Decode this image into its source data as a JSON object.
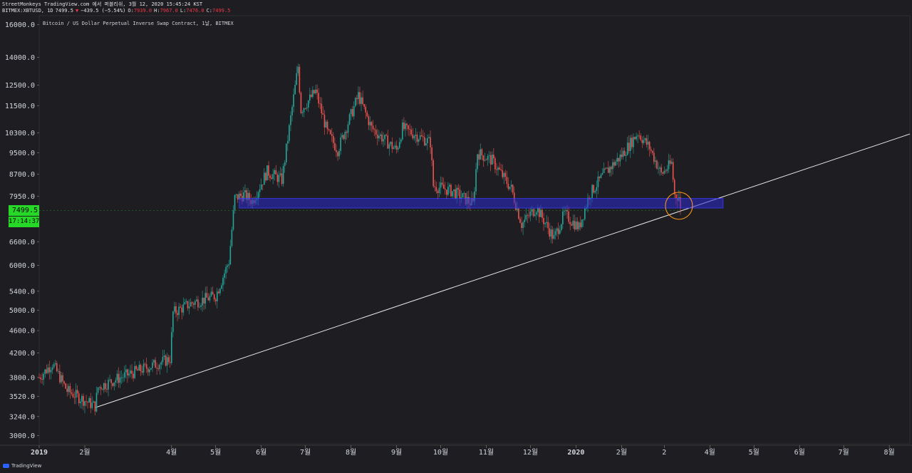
{
  "header": {
    "line1": "StreetMonkeys TradingView.com 에서 퍼블리쉬, 3월 12, 2020 15:45:24 KST",
    "symbol": "BITMEX:XBTUSD, 1D",
    "last": "7499.5",
    "arrow": "▼",
    "change": "−439.5 (−5.54%)",
    "o_label": "O:",
    "o_val": "7939.0",
    "h_label": "H:",
    "h_val": "7967.0",
    "l_label": "L:",
    "l_val": "7476.0",
    "c_label": "C:",
    "c_val": "7499.5"
  },
  "chart_title": "Bitcoin / US Dollar Perpetual Inverse Swap Contract, 1날, BITMEX",
  "price_tag": "7499.5",
  "timer_tag": "17:14:37",
  "footer_brand": "TradingView",
  "colors": {
    "up": "#26a69a",
    "down": "#ef5350",
    "support_zone": "#2b2bd0",
    "trendline": "#e6e6e6",
    "circle": "#f7931a",
    "last_price": "#26d926"
  },
  "chart_data": {
    "type": "candlestick",
    "scale": "log",
    "ylim": [
      2900,
      16600
    ],
    "y_ticks": [
      16000,
      14000,
      12500,
      11500,
      10300,
      9500,
      8700,
      7950,
      6600,
      6000,
      5400,
      5000,
      4600,
      4200,
      3800,
      3520,
      3240,
      3000
    ],
    "y_tick_labels": [
      "16000.0",
      "14000.0",
      "12500.0",
      "11500.0",
      "10300.0",
      "9500.0",
      "8700.0",
      "7950.0",
      "6600.0",
      "6000.0",
      "5400.0",
      "5000.0",
      "4600.0",
      "4200.0",
      "3800.0",
      "3520.0",
      "3240.0",
      "3000.0"
    ],
    "x_range": [
      "2019-01-01",
      "2020-08-15"
    ],
    "x_ticks": [
      {
        "date": "2019-01-01",
        "label": "2019"
      },
      {
        "date": "2019-02-01",
        "label": "2월"
      },
      {
        "date": "2019-04-01",
        "label": "4월"
      },
      {
        "date": "2019-05-01",
        "label": "5월"
      },
      {
        "date": "2019-06-01",
        "label": "6월"
      },
      {
        "date": "2019-07-01",
        "label": "7월"
      },
      {
        "date": "2019-08-01",
        "label": "8월"
      },
      {
        "date": "2019-09-01",
        "label": "9월"
      },
      {
        "date": "2019-10-01",
        "label": "10월"
      },
      {
        "date": "2019-11-01",
        "label": "11월"
      },
      {
        "date": "2019-12-01",
        "label": "12월"
      },
      {
        "date": "2020-01-01",
        "label": "2020"
      },
      {
        "date": "2020-02-01",
        "label": "2월"
      },
      {
        "date": "2020-03-01",
        "label": "2"
      },
      {
        "date": "2020-04-01",
        "label": "4월"
      },
      {
        "date": "2020-05-01",
        "label": "5월"
      },
      {
        "date": "2020-06-01",
        "label": "6월"
      },
      {
        "date": "2020-07-01",
        "label": "7월"
      },
      {
        "date": "2020-08-01",
        "label": "8월"
      }
    ],
    "price_path": [
      [
        "2019-01-01",
        3800
      ],
      [
        "2019-01-10",
        4020
      ],
      [
        "2019-01-20",
        3600
      ],
      [
        "2019-02-08",
        3380
      ],
      [
        "2019-02-10",
        3650
      ],
      [
        "2019-02-25",
        3800
      ],
      [
        "2019-03-31",
        4100
      ],
      [
        "2019-04-02",
        4950
      ],
      [
        "2019-04-15",
        5150
      ],
      [
        "2019-05-01",
        5300
      ],
      [
        "2019-05-10",
        6100
      ],
      [
        "2019-05-14",
        7900
      ],
      [
        "2019-05-20",
        8000
      ],
      [
        "2019-05-26",
        7800
      ],
      [
        "2019-06-05",
        8800
      ],
      [
        "2019-06-15",
        8500
      ],
      [
        "2019-06-26",
        13500
      ],
      [
        "2019-06-28",
        11300
      ],
      [
        "2019-07-08",
        12200
      ],
      [
        "2019-07-16",
        10300
      ],
      [
        "2019-07-23",
        9600
      ],
      [
        "2019-08-06",
        12000
      ],
      [
        "2019-08-15",
        10500
      ],
      [
        "2019-08-24",
        10000
      ],
      [
        "2019-09-01",
        9600
      ],
      [
        "2019-09-05",
        10500
      ],
      [
        "2019-09-24",
        9900
      ],
      [
        "2019-09-26",
        8300
      ],
      [
        "2019-10-10",
        8100
      ],
      [
        "2019-10-23",
        7700
      ],
      [
        "2019-10-26",
        9500
      ],
      [
        "2019-11-05",
        9200
      ],
      [
        "2019-11-18",
        8200
      ],
      [
        "2019-11-25",
        7100
      ],
      [
        "2019-12-05",
        7600
      ],
      [
        "2019-12-17",
        6700
      ],
      [
        "2019-12-24",
        7400
      ],
      [
        "2020-01-03",
        7000
      ],
      [
        "2020-01-10",
        8000
      ],
      [
        "2020-01-20",
        8700
      ],
      [
        "2020-02-01",
        9400
      ],
      [
        "2020-02-12",
        10300
      ],
      [
        "2020-02-20",
        9700
      ],
      [
        "2020-02-28",
        8700
      ],
      [
        "2020-03-06",
        9100
      ],
      [
        "2020-03-08",
        8000
      ],
      [
        "2020-03-11",
        7939
      ],
      [
        "2020-03-12",
        7499.5
      ]
    ],
    "support_zone": {
      "from": "2019-05-17",
      "to": "2020-04-10",
      "low": 7580,
      "high": 7880
    },
    "trendline": {
      "p1": [
        "2019-02-08",
        3360
      ],
      "p2": [
        "2020-08-15",
        10250
      ]
    },
    "circle_marker": {
      "date": "2020-03-11",
      "price": 7650
    },
    "last_price": 7499.5
  }
}
